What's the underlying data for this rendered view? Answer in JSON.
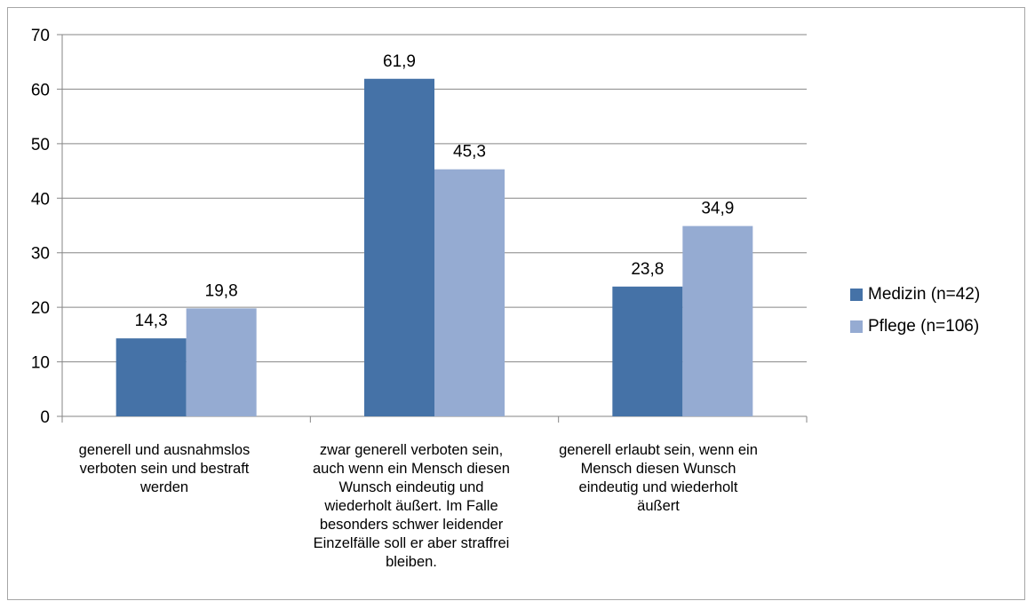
{
  "chart_data": {
    "type": "bar",
    "categories": [
      "generell und ausnahmslos\nverboten sein und bestraft\nwerden",
      "zwar generell verboten sein,\nauch wenn ein Mensch diesen\nWunsch eindeutig und\nwiederholt äußert. Im Falle\nbesonders schwer leidender\nEinzelfälle soll er aber straffrei\nbleiben.",
      "generell erlaubt sein, wenn ein\nMensch diesen Wunsch\neindeutig und wiederholt\näußert"
    ],
    "series": [
      {
        "name": "Medizin (n=42)",
        "values": [
          14.3,
          61.9,
          23.8
        ],
        "labels": [
          "14,3",
          "61,9",
          "23,8"
        ],
        "color": "#4572a7"
      },
      {
        "name": "Pflege (n=106)",
        "values": [
          19.8,
          45.3,
          34.9
        ],
        "labels": [
          "19,8",
          "45,3",
          "34,9"
        ],
        "color": "#95abd2"
      }
    ],
    "yticks": [
      "0",
      "10",
      "20",
      "30",
      "40",
      "50",
      "60",
      "70"
    ],
    "ylim": [
      0,
      70
    ],
    "grid": true,
    "legend_position": "right"
  }
}
